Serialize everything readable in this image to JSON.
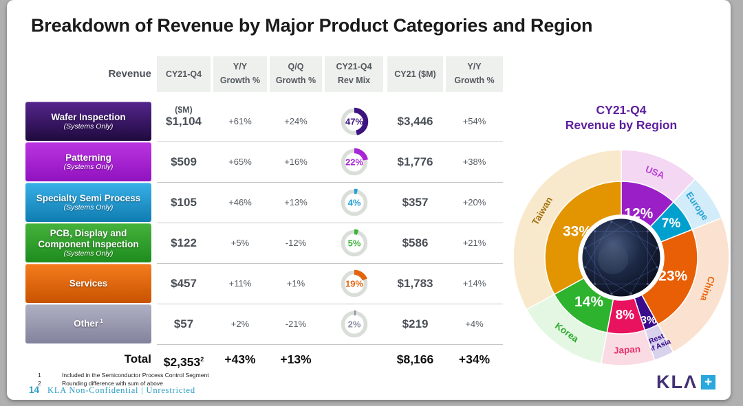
{
  "slide": {
    "title": "Breakdown of Revenue by Major Product Categories and Region",
    "page_number": "14",
    "footer_text": "KLA Non-Confidential |  Unrestricted",
    "footnotes": [
      {
        "marker": "1",
        "text": "Included in the Semiconductor Process Control Segment"
      },
      {
        "marker": "2",
        "text": "Rounding difference with sum of above"
      }
    ],
    "logo": {
      "text": "KLΛ",
      "plus": "+"
    }
  },
  "table": {
    "corner_label": "Revenue",
    "columns": [
      [
        "CY21-Q4 ($M)"
      ],
      [
        "Y/Y",
        "Growth %"
      ],
      [
        "Q/Q",
        "Growth %"
      ],
      [
        "CY21-Q4",
        "Rev Mix"
      ],
      [
        "CY21 ($M)"
      ],
      [
        "Y/Y",
        "Growth %"
      ]
    ],
    "rows": [
      {
        "label": "Wafer Inspection",
        "sup": "",
        "subtitle": "(Systems Only)",
        "grad_top": "#55258e",
        "grad_bottom": "#1f0a3e",
        "accent": "#3d1380",
        "q4": "$1,104",
        "yy_growth": "+61%",
        "qq_growth": "+24%",
        "rev_mix": "47%",
        "cy21": "$3,446",
        "cy21_yy": "+54%"
      },
      {
        "label": "Patterning",
        "sup": "",
        "subtitle": "(Systems Only)",
        "grad_top": "#bb35e2",
        "grad_bottom": "#9012be",
        "accent": "#a826d6",
        "q4": "$509",
        "yy_growth": "+65%",
        "qq_growth": "+16%",
        "rev_mix": "22%",
        "cy21": "$1,776",
        "cy21_yy": "+38%"
      },
      {
        "label": "Specialty Semi Process",
        "sup": "",
        "subtitle": "(Systems Only)",
        "grad_top": "#38b0e8",
        "grad_bottom": "#0f7cb0",
        "accent": "#1f9fd8",
        "q4": "$105",
        "yy_growth": "+46%",
        "qq_growth": "+13%",
        "rev_mix": "4%",
        "cy21": "$357",
        "cy21_yy": "+20%"
      },
      {
        "label": "PCB, Display and Component Inspection",
        "sup": "",
        "subtitle": "(Systems Only)",
        "grad_top": "#45b23c",
        "grad_bottom": "#1e8c1e",
        "accent": "#3cb43c",
        "q4": "$122",
        "yy_growth": "+5%",
        "qq_growth": "-12%",
        "rev_mix": "5%",
        "cy21": "$586",
        "cy21_yy": "+21%"
      },
      {
        "label": "Services",
        "sup": "",
        "subtitle": "",
        "grad_top": "#f57d1e",
        "grad_bottom": "#c85200",
        "accent": "#e2640e",
        "q4": "$457",
        "yy_growth": "+11%",
        "qq_growth": "+1%",
        "rev_mix": "19%",
        "cy21": "$1,783",
        "cy21_yy": "+14%"
      },
      {
        "label": "Other",
        "sup": "1",
        "subtitle": "",
        "grad_top": "#b0b0c4",
        "grad_bottom": "#82829c",
        "accent": "#8c8ca4",
        "q4": "$57",
        "yy_growth": "+2%",
        "qq_growth": "-21%",
        "rev_mix": "2%",
        "cy21": "$219",
        "cy21_yy": "+4%"
      }
    ],
    "total": {
      "label": "Total",
      "q4": "$2,353",
      "q4_sup": "2",
      "yy_growth": "+43%",
      "qq_growth": "+13%",
      "cy21": "$8,166",
      "cy21_yy": "+34%"
    }
  },
  "chart_data": [
    {
      "type": "pie",
      "title_line1": "CY21-Q4",
      "title_line2": "Revenue by Region",
      "title_color": "#5c1f9e",
      "legend_position": "labels-on-slices",
      "start_angle_deg": 0,
      "direction": "clockwise",
      "slices": [
        {
          "name": "USA",
          "value": 12,
          "color": "#9b1fc6",
          "ring_color": "#f4d7f2",
          "label_color": "#b83fd6",
          "pct_r": 0.62
        },
        {
          "name": "Europe",
          "value": 7,
          "color": "#00a0ce",
          "ring_color": "#d2ecf9",
          "label_color": "#2aa3d8",
          "pct_r": 0.79
        },
        {
          "name": "China",
          "value": 23,
          "color": "#e85f06",
          "ring_color": "#fbe2d0",
          "label_color": "#e8660e",
          "pct_r": 0.72
        },
        {
          "name": "Rest of Asia",
          "value": 3,
          "color": "#3a0c8c",
          "ring_color": "#d9d2ed",
          "label_color": "#3a0c8c",
          "pct_r": 0.9,
          "name_lines": [
            "Rest",
            "of Asia"
          ]
        },
        {
          "name": "Japan",
          "value": 8,
          "color": "#e8125f",
          "ring_color": "#fadbe4",
          "label_color": "#e8326e",
          "pct_r": 0.76
        },
        {
          "name": "Korea",
          "value": 14,
          "color": "#2db32d",
          "ring_color": "#e3f7e3",
          "label_color": "#2daa2d",
          "pct_r": 0.72
        },
        {
          "name": "Taiwan",
          "value": 33,
          "color": "#e29500",
          "ring_color": "#f9e9cc",
          "label_color": "#a0720f",
          "pct_r": 0.67
        }
      ]
    },
    {
      "type": "donut-set",
      "title": "CY21-Q4 Rev Mix",
      "categories": [
        "Wafer Inspection",
        "Patterning",
        "Specialty Semi Process",
        "PCB, Display and Component Inspection",
        "Services",
        "Other"
      ],
      "values": [
        47,
        22,
        4,
        5,
        19,
        2
      ]
    }
  ]
}
